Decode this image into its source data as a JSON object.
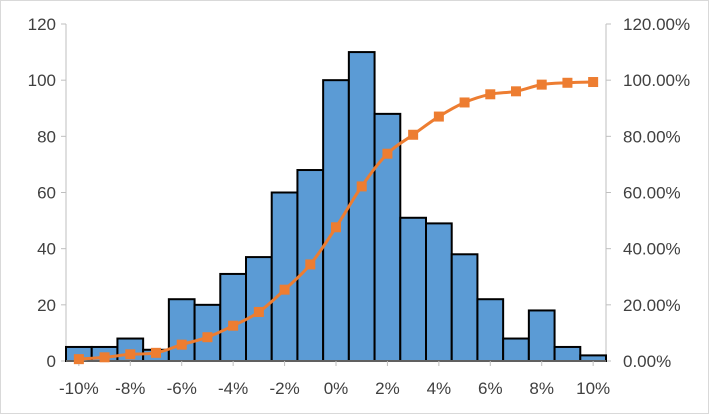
{
  "chart_data": {
    "type": "bar",
    "title": "",
    "xlabel": "",
    "ylabel": "",
    "legend": "none",
    "grid": false,
    "x_bins": [
      -10,
      -9,
      -8,
      -7,
      -6,
      -5,
      -4,
      -3,
      -2,
      -1,
      0,
      1,
      2,
      3,
      4,
      5,
      6,
      7,
      8,
      9,
      10
    ],
    "x_tick_values": [
      -10,
      -8,
      -6,
      -4,
      -2,
      0,
      2,
      4,
      6,
      8,
      10
    ],
    "x_tick_labels": [
      "-10%",
      "-8%",
      "-6%",
      "-4%",
      "-2%",
      "0%",
      "2%",
      "4%",
      "6%",
      "8%",
      "10%"
    ],
    "y_left_ticks": [
      "0",
      "20",
      "40",
      "60",
      "80",
      "100",
      "120"
    ],
    "y_left_lim": [
      0,
      120
    ],
    "y_right_ticks": [
      "0.00%",
      "20.00%",
      "40.00%",
      "60.00%",
      "80.00%",
      "100.00%",
      "120.00%"
    ],
    "y_right_lim": [
      0,
      1.2
    ],
    "series": [
      {
        "type": "bar",
        "axis": "left",
        "color": "#5b9bd5",
        "edge_color": "#000000",
        "values": [
          5,
          5,
          8,
          4,
          22,
          20,
          31,
          37,
          60,
          68,
          100,
          110,
          88,
          51,
          49,
          38,
          22,
          8,
          18,
          5,
          2
        ]
      },
      {
        "type": "line",
        "axis": "right",
        "color": "#ed7d31",
        "marker": "square",
        "smooth": true,
        "values": [
          0.0066,
          0.0132,
          0.0238,
          0.0291,
          0.0582,
          0.0847,
          0.1257,
          0.1746,
          0.254,
          0.3439,
          0.4762,
          0.6217,
          0.7381,
          0.8056,
          0.8704,
          0.9206,
          0.9497,
          0.9603,
          0.9841,
          0.9907,
          0.9934
        ]
      }
    ]
  }
}
